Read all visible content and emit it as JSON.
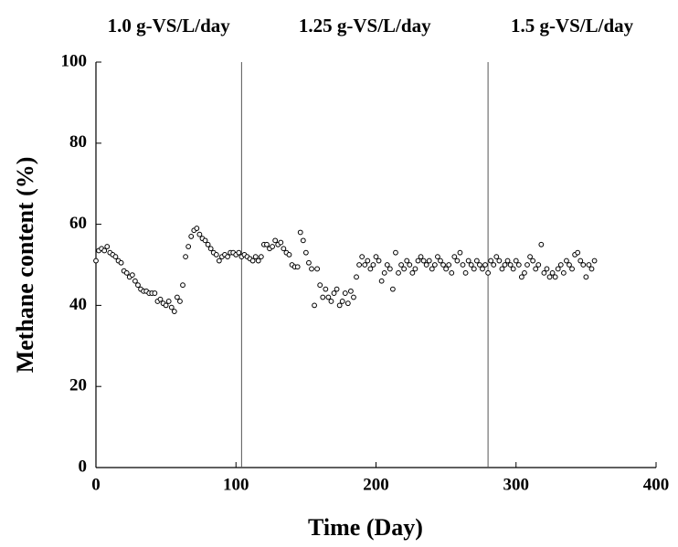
{
  "chart_data": {
    "type": "scatter",
    "annotations": [
      "1.0 g-VS/L/day",
      "1.25 g-VS/L/day",
      "1.5 g-VS/L/day"
    ],
    "dividers": [
      104,
      280
    ],
    "x_label": "Time (Day)",
    "y_label": "Methane content (%)",
    "xlim": [
      0,
      400
    ],
    "xticks": [
      0,
      100,
      200,
      300,
      400
    ],
    "ylim": [
      0,
      100
    ],
    "yticks": [
      0,
      20,
      40,
      60,
      80,
      100
    ],
    "series": [
      {
        "color": "#000000",
        "x": [
          0,
          2,
          4,
          6,
          8,
          10,
          12,
          14,
          16,
          18,
          20,
          22,
          24,
          26,
          28,
          30,
          32,
          34,
          36,
          38,
          40,
          42,
          44,
          46,
          48,
          50,
          52,
          54,
          56,
          58,
          60,
          62,
          64,
          66,
          68,
          70,
          72,
          74,
          76,
          78,
          80,
          82,
          84,
          86,
          88,
          90,
          92,
          94,
          96,
          98,
          100,
          102,
          104,
          106,
          108,
          110,
          112,
          114,
          116,
          118,
          120,
          122,
          124,
          126,
          128,
          130,
          132,
          134,
          136,
          138,
          140,
          142,
          144,
          146,
          148,
          150,
          152,
          154,
          156,
          158,
          160,
          162,
          164,
          166,
          168,
          170,
          172,
          174,
          176,
          178,
          180,
          182,
          184,
          186,
          188,
          190,
          192,
          194,
          196,
          198,
          200,
          202,
          204,
          206,
          208,
          210,
          212,
          214,
          216,
          218,
          220,
          222,
          224,
          226,
          228,
          230,
          232,
          234,
          236,
          238,
          240,
          242,
          244,
          246,
          248,
          250,
          252,
          254,
          256,
          258,
          260,
          262,
          264,
          266,
          268,
          270,
          272,
          274,
          276,
          278,
          280,
          282,
          284,
          286,
          288,
          290,
          292,
          294,
          296,
          298,
          300,
          302,
          304,
          306,
          308,
          310,
          312,
          314,
          316,
          318,
          320,
          322,
          324,
          326,
          328,
          330,
          332,
          334,
          336,
          338,
          340,
          342,
          344,
          346,
          348,
          350,
          352,
          354,
          356
        ],
        "values": [
          51,
          53.5,
          54,
          53.5,
          54.5,
          53,
          52.5,
          52,
          51,
          50.5,
          48.5,
          48,
          47,
          47.5,
          46,
          45,
          44,
          43.5,
          43.5,
          43,
          43,
          43,
          41,
          41.5,
          40.5,
          40,
          41,
          39.5,
          38.5,
          42,
          41,
          45,
          52,
          54.5,
          57,
          58.5,
          59,
          57.5,
          56.5,
          56,
          55,
          54,
          53,
          52.5,
          51,
          52,
          52.5,
          52,
          53,
          53,
          52.5,
          53,
          52,
          52.5,
          52,
          51.5,
          51,
          52,
          51,
          52,
          55,
          55,
          54,
          54.5,
          56,
          55,
          55.5,
          54,
          53,
          52.5,
          50,
          49.5,
          49.5,
          58,
          56,
          53,
          50.5,
          49,
          40,
          49,
          45,
          42,
          44,
          42,
          41,
          43,
          44,
          40,
          41,
          43,
          40.5,
          43.5,
          42,
          47,
          50,
          52,
          50,
          51,
          49,
          50,
          52,
          51,
          46,
          48,
          50,
          49,
          44,
          53,
          48,
          50,
          49,
          51,
          50,
          48,
          49,
          51,
          52,
          51,
          50,
          51,
          49,
          50,
          52,
          51,
          50,
          49,
          50,
          48,
          52,
          51,
          53,
          50,
          48,
          51,
          50,
          49,
          51,
          50,
          49,
          50,
          48,
          51,
          50,
          52,
          51,
          49,
          50,
          51,
          50,
          49,
          51,
          50,
          47,
          48,
          50,
          52,
          51,
          49,
          50,
          55,
          48,
          49,
          47,
          48,
          47,
          49,
          50,
          48,
          51,
          50,
          49,
          52.5,
          53,
          51,
          50,
          47,
          50,
          49,
          51
        ]
      }
    ]
  }
}
